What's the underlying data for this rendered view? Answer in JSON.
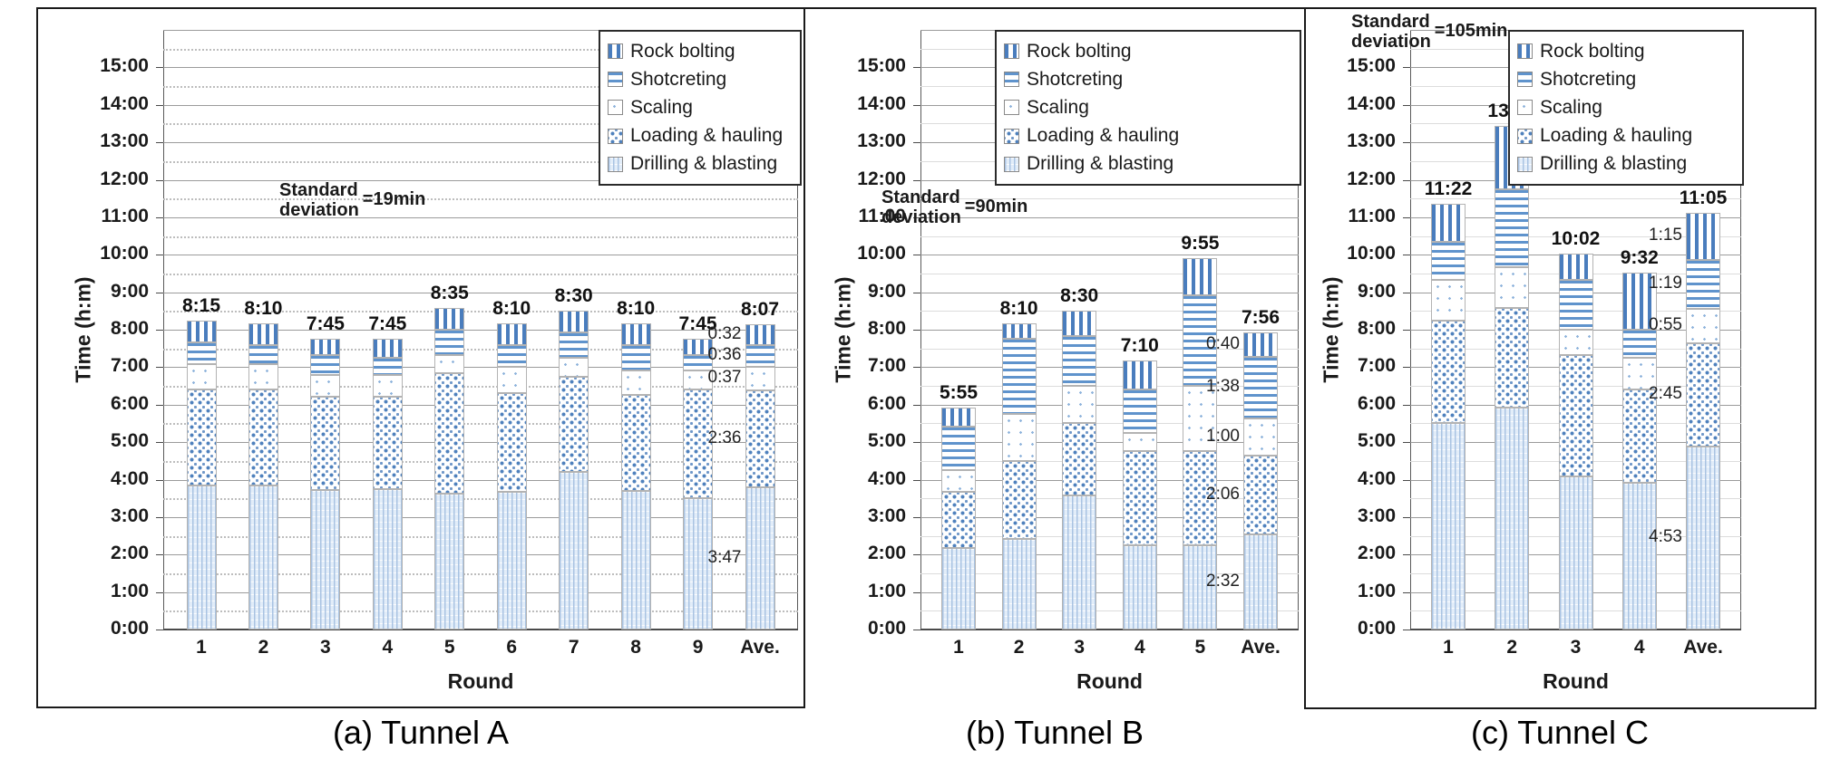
{
  "figure_captions": [
    "(a) Tunnel A",
    "(b) Tunnel B",
    "(c) Tunnel C"
  ],
  "axis": {
    "y_title": "Time (h:m)",
    "x_title": "Round",
    "y_tick_labels": [
      "0:00",
      "1:00",
      "2:00",
      "3:00",
      "4:00",
      "5:00",
      "6:00",
      "7:00",
      "8:00",
      "9:00",
      "10:00",
      "11:00",
      "12:00",
      "13:00",
      "14:00",
      "15:00"
    ],
    "y_max_hours": 16,
    "grid": "solid gray line each hour, light minor line each half hour"
  },
  "legend": {
    "items": [
      {
        "label": "Rock bolting",
        "key": "rock"
      },
      {
        "label": "Shotcreting",
        "key": "shotcrete"
      },
      {
        "label": "Scaling",
        "key": "scaling"
      },
      {
        "label": "Loading & hauling",
        "key": "loading"
      },
      {
        "label": "Drilling & blasting",
        "key": "drilling"
      }
    ]
  },
  "colors": {
    "rock_stripe": "#4a7dbd",
    "shotcrete_stripe": "#5f93cc",
    "scaling_dot": "#8fb4dc",
    "loading_dot": "#4f81bd",
    "drilling_bg": "#e2edf9",
    "drilling_line": "#a9c3e2",
    "bar_border": "#b3b3b3",
    "grid_hour": "#9b9b9b",
    "grid_half": "#dcdcdc",
    "text": "#1a1a1a"
  },
  "chart_data": [
    {
      "type": "bar",
      "stacked": true,
      "title": "(a) Tunnel A",
      "std_deviation": {
        "label": "Standard\ndeviation",
        "value": "=19min"
      },
      "xlabel": "Round",
      "ylabel": "Time (h:m)",
      "ylim_hours": [
        0,
        16
      ],
      "categories": [
        "1",
        "2",
        "3",
        "4",
        "5",
        "6",
        "7",
        "8",
        "9",
        "Ave."
      ],
      "totals": [
        "8:15",
        "8:10",
        "7:45",
        "7:45",
        "8:35",
        "8:10",
        "8:30",
        "8:10",
        "7:45",
        "8:07"
      ],
      "series": [
        {
          "name": "Drilling & blasting",
          "key": "drilling",
          "values_min": [
            230,
            230,
            223,
            225,
            217,
            220,
            252,
            222,
            210,
            227
          ]
        },
        {
          "name": "Loading & hauling",
          "key": "loading",
          "values_min": [
            155,
            155,
            149,
            147,
            193,
            158,
            153,
            153,
            175,
            156
          ]
        },
        {
          "name": "Scaling",
          "key": "scaling",
          "values_min": [
            40,
            40,
            35,
            35,
            30,
            42,
            30,
            40,
            30,
            37
          ]
        },
        {
          "name": "Shotcreting",
          "key": "shotcrete",
          "values_min": [
            35,
            30,
            33,
            28,
            40,
            35,
            40,
            40,
            25,
            36
          ]
        },
        {
          "name": "Rock bolting",
          "key": "rock",
          "values_min": [
            35,
            35,
            25,
            30,
            35,
            35,
            35,
            35,
            25,
            32
          ]
        }
      ],
      "ave_segment_labels": [
        "3:47",
        "2:36",
        "0:37",
        "0:36",
        "0:32"
      ]
    },
    {
      "type": "bar",
      "stacked": true,
      "title": "(b) Tunnel B",
      "std_deviation": {
        "label": "Standard\ndeviation",
        "value": "=90min"
      },
      "xlabel": "Round",
      "ylabel": "Time (h:m)",
      "ylim_hours": [
        0,
        16
      ],
      "categories": [
        "1",
        "2",
        "3",
        "4",
        "5",
        "Ave."
      ],
      "totals": [
        "5:55",
        "8:10",
        "8:30",
        "7:10",
        "9:55",
        "7:56"
      ],
      "series": [
        {
          "name": "Drilling & blasting",
          "key": "drilling",
          "values_min": [
            130,
            145,
            215,
            135,
            135,
            152
          ]
        },
        {
          "name": "Loading & hauling",
          "key": "loading",
          "values_min": [
            90,
            125,
            115,
            150,
            150,
            126
          ]
        },
        {
          "name": "Scaling",
          "key": "scaling",
          "values_min": [
            35,
            75,
            60,
            30,
            105,
            60
          ]
        },
        {
          "name": "Shotcreting",
          "key": "shotcrete",
          "values_min": [
            70,
            120,
            80,
            70,
            145,
            98
          ]
        },
        {
          "name": "Rock bolting",
          "key": "rock",
          "values_min": [
            30,
            25,
            40,
            45,
            60,
            40
          ]
        }
      ],
      "ave_segment_labels": [
        "2:32",
        "2:06",
        "1:00",
        "1:38",
        "0:40"
      ]
    },
    {
      "type": "bar",
      "stacked": true,
      "title": "(c) Tunnel C",
      "std_deviation": {
        "label": "Standard\ndeviation",
        "value": "=105min"
      },
      "xlabel": "Round",
      "ylabel": "Time (h:m)",
      "ylim_hours": [
        0,
        16
      ],
      "categories": [
        "1",
        "2",
        "3",
        "4",
        "Ave."
      ],
      "totals": [
        "11:22",
        "13:27",
        "10:02",
        "9:32",
        "11:05"
      ],
      "series": [
        {
          "name": "Drilling & blasting",
          "key": "drilling",
          "values_min": [
            330,
            355,
            245,
            235,
            293
          ]
        },
        {
          "name": "Loading & hauling",
          "key": "loading",
          "values_min": [
            165,
            160,
            195,
            150,
            165
          ]
        },
        {
          "name": "Scaling",
          "key": "scaling",
          "values_min": [
            65,
            65,
            40,
            50,
            55
          ]
        },
        {
          "name": "Shotcreting",
          "key": "shotcrete",
          "values_min": [
            60,
            125,
            80,
            45,
            79
          ]
        },
        {
          "name": "Rock bolting",
          "key": "rock",
          "values_min": [
            62,
            102,
            42,
            92,
            75
          ]
        }
      ],
      "ave_segment_labels": [
        "4:53",
        "2:45",
        "0:55",
        "1:19",
        "1:15"
      ]
    }
  ]
}
